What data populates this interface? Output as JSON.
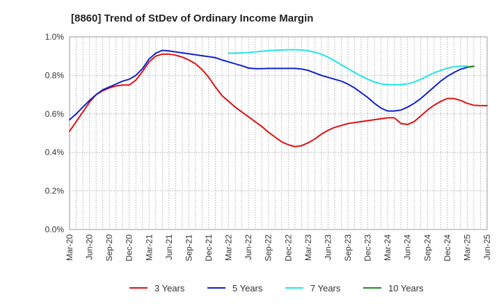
{
  "chart_data": {
    "type": "line",
    "title": "[8860]  Trend of StDev of Ordinary Income Margin",
    "xlabel": "",
    "ylabel": "",
    "ylim": [
      0,
      1.0
    ],
    "y_ticks": [
      "0.0%",
      "0.2%",
      "0.4%",
      "0.6%",
      "0.8%",
      "1.0%"
    ],
    "x_ticks": [
      "Mar-20",
      "Jun-20",
      "Sep-20",
      "Dec-20",
      "Mar-21",
      "Jun-21",
      "Sep-21",
      "Dec-21",
      "Mar-22",
      "Jun-22",
      "Sep-22",
      "Dec-22",
      "Mar-23",
      "Jun-23",
      "Sep-23",
      "Dec-23",
      "Mar-24",
      "Jun-24",
      "Sep-24",
      "Dec-24",
      "Mar-25",
      "Jun-25"
    ],
    "grid": true,
    "legend_position": "bottom",
    "series": [
      {
        "name": "3 Years",
        "color": "#dd1111",
        "points": [
          [
            0,
            0.51
          ],
          [
            1,
            0.56
          ],
          [
            2,
            0.61
          ],
          [
            3,
            0.66
          ],
          [
            4,
            0.7
          ],
          [
            5,
            0.72
          ],
          [
            6,
            0.735
          ],
          [
            7,
            0.745
          ],
          [
            8,
            0.75
          ],
          [
            9,
            0.75
          ],
          [
            10,
            0.775
          ],
          [
            11,
            0.82
          ],
          [
            12,
            0.87
          ],
          [
            13,
            0.9
          ],
          [
            14,
            0.91
          ],
          [
            15,
            0.91
          ],
          [
            16,
            0.905
          ],
          [
            17,
            0.895
          ],
          [
            18,
            0.88
          ],
          [
            19,
            0.86
          ],
          [
            20,
            0.83
          ],
          [
            21,
            0.79
          ],
          [
            22,
            0.74
          ],
          [
            23,
            0.695
          ],
          [
            24,
            0.665
          ],
          [
            25,
            0.635
          ],
          [
            26,
            0.61
          ],
          [
            27,
            0.585
          ],
          [
            28,
            0.56
          ],
          [
            29,
            0.535
          ],
          [
            30,
            0.505
          ],
          [
            31,
            0.48
          ],
          [
            32,
            0.455
          ],
          [
            33,
            0.44
          ],
          [
            34,
            0.43
          ],
          [
            35,
            0.435
          ],
          [
            36,
            0.45
          ],
          [
            37,
            0.47
          ],
          [
            38,
            0.495
          ],
          [
            39,
            0.515
          ],
          [
            40,
            0.53
          ],
          [
            41,
            0.54
          ],
          [
            42,
            0.55
          ],
          [
            43,
            0.555
          ],
          [
            44,
            0.56
          ],
          [
            45,
            0.565
          ],
          [
            46,
            0.57
          ],
          [
            47,
            0.575
          ],
          [
            48,
            0.58
          ],
          [
            49,
            0.58
          ],
          [
            50,
            0.55
          ],
          [
            51,
            0.545
          ],
          [
            52,
            0.56
          ],
          [
            53,
            0.59
          ],
          [
            54,
            0.62
          ],
          [
            55,
            0.645
          ],
          [
            56,
            0.665
          ],
          [
            57,
            0.68
          ],
          [
            58,
            0.68
          ],
          [
            59,
            0.67
          ],
          [
            60,
            0.655
          ],
          [
            61,
            0.645
          ],
          [
            62,
            0.643
          ],
          [
            63,
            0.643
          ]
        ]
      },
      {
        "name": "5 Years",
        "color": "#1020cc",
        "points": [
          [
            0,
            0.57
          ],
          [
            1,
            0.6
          ],
          [
            2,
            0.635
          ],
          [
            3,
            0.67
          ],
          [
            4,
            0.7
          ],
          [
            5,
            0.725
          ],
          [
            6,
            0.74
          ],
          [
            7,
            0.755
          ],
          [
            8,
            0.77
          ],
          [
            9,
            0.78
          ],
          [
            10,
            0.8
          ],
          [
            11,
            0.835
          ],
          [
            12,
            0.885
          ],
          [
            13,
            0.915
          ],
          [
            14,
            0.93
          ],
          [
            15,
            0.927
          ],
          [
            16,
            0.922
          ],
          [
            17,
            0.917
          ],
          [
            18,
            0.912
          ],
          [
            19,
            0.907
          ],
          [
            20,
            0.902
          ],
          [
            21,
            0.897
          ],
          [
            22,
            0.892
          ],
          [
            23,
            0.88
          ],
          [
            24,
            0.87
          ],
          [
            25,
            0.86
          ],
          [
            26,
            0.85
          ],
          [
            27,
            0.838
          ],
          [
            28,
            0.835
          ],
          [
            29,
            0.835
          ],
          [
            30,
            0.836
          ],
          [
            31,
            0.836
          ],
          [
            32,
            0.836
          ],
          [
            33,
            0.836
          ],
          [
            34,
            0.836
          ],
          [
            35,
            0.833
          ],
          [
            36,
            0.826
          ],
          [
            37,
            0.813
          ],
          [
            38,
            0.8
          ],
          [
            39,
            0.79
          ],
          [
            40,
            0.78
          ],
          [
            41,
            0.77
          ],
          [
            42,
            0.755
          ],
          [
            43,
            0.735
          ],
          [
            44,
            0.71
          ],
          [
            45,
            0.685
          ],
          [
            46,
            0.655
          ],
          [
            47,
            0.63
          ],
          [
            48,
            0.615
          ],
          [
            49,
            0.615
          ],
          [
            50,
            0.62
          ],
          [
            51,
            0.635
          ],
          [
            52,
            0.655
          ],
          [
            53,
            0.68
          ],
          [
            54,
            0.71
          ],
          [
            55,
            0.74
          ],
          [
            56,
            0.77
          ],
          [
            57,
            0.795
          ],
          [
            58,
            0.815
          ],
          [
            59,
            0.832
          ],
          [
            60,
            0.842
          ],
          [
            61,
            0.847
          ]
        ]
      },
      {
        "name": "7 Years",
        "color": "#22e5e5",
        "points": [
          [
            24,
            0.915
          ],
          [
            25,
            0.915
          ],
          [
            26,
            0.917
          ],
          [
            27,
            0.919
          ],
          [
            28,
            0.922
          ],
          [
            29,
            0.925
          ],
          [
            30,
            0.928
          ],
          [
            31,
            0.931
          ],
          [
            32,
            0.932
          ],
          [
            33,
            0.933
          ],
          [
            34,
            0.933
          ],
          [
            35,
            0.932
          ],
          [
            36,
            0.928
          ],
          [
            37,
            0.92
          ],
          [
            38,
            0.91
          ],
          [
            39,
            0.895
          ],
          [
            40,
            0.875
          ],
          [
            41,
            0.855
          ],
          [
            42,
            0.835
          ],
          [
            43,
            0.815
          ],
          [
            44,
            0.797
          ],
          [
            45,
            0.78
          ],
          [
            46,
            0.766
          ],
          [
            47,
            0.756
          ],
          [
            48,
            0.752
          ],
          [
            49,
            0.752
          ],
          [
            50,
            0.752
          ],
          [
            51,
            0.756
          ],
          [
            52,
            0.765
          ],
          [
            53,
            0.78
          ],
          [
            54,
            0.797
          ],
          [
            55,
            0.813
          ],
          [
            56,
            0.826
          ],
          [
            57,
            0.837
          ],
          [
            58,
            0.845
          ],
          [
            59,
            0.848
          ],
          [
            60,
            0.848
          ]
        ]
      },
      {
        "name": "10 Years",
        "color": "#228822",
        "points": [
          [
            60,
            0.843
          ],
          [
            61,
            0.848
          ]
        ]
      }
    ]
  }
}
